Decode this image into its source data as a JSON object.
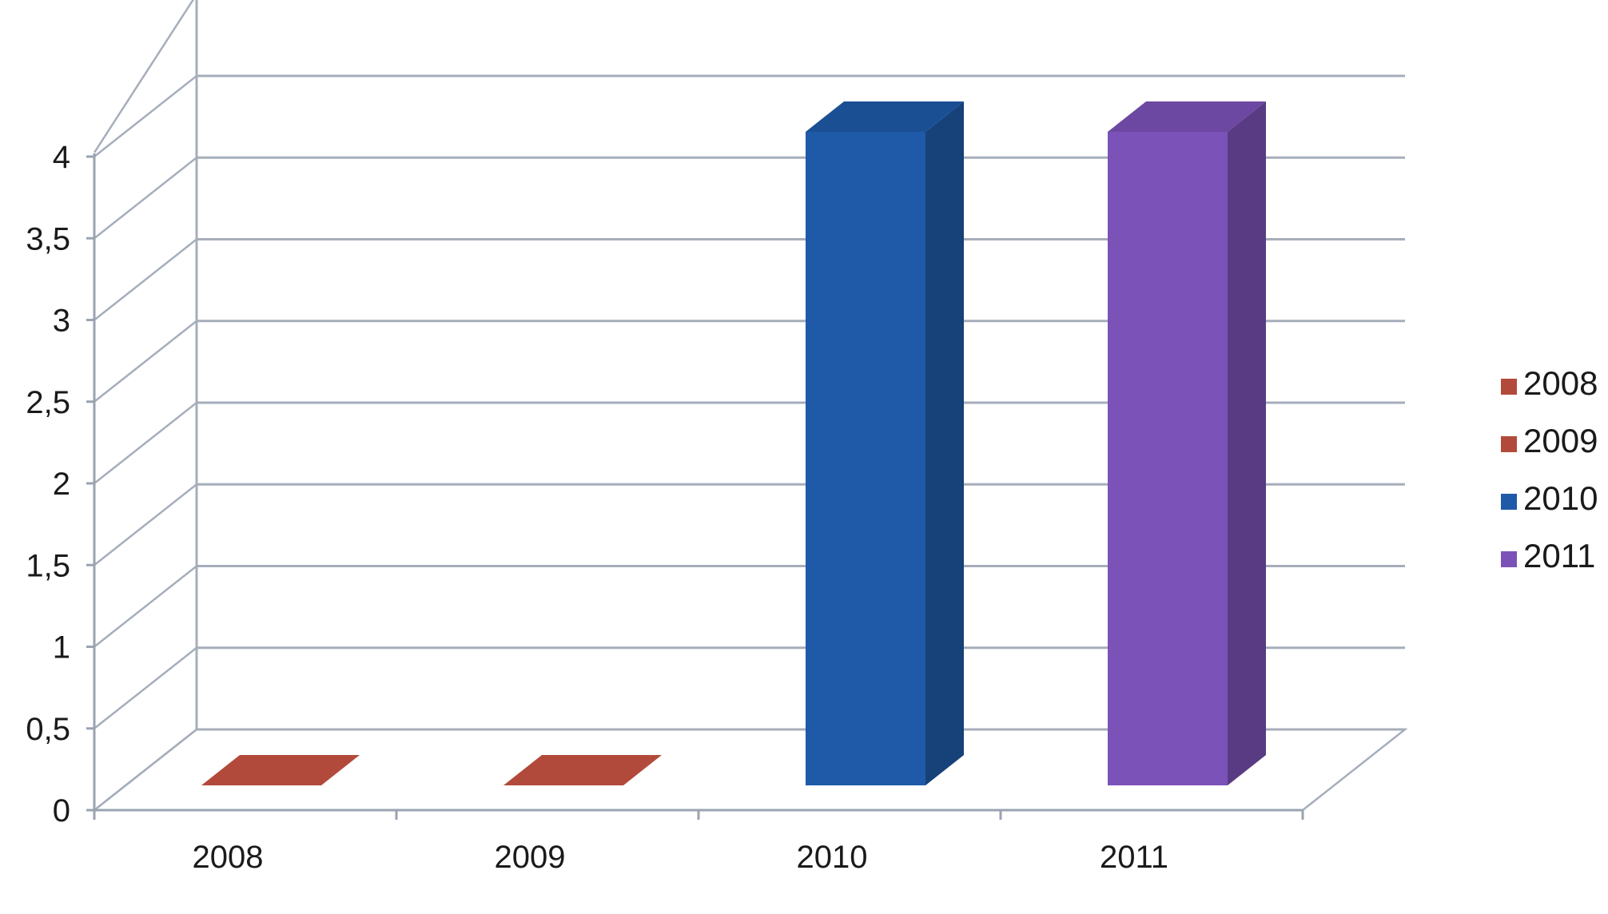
{
  "chart_data": {
    "type": "bar",
    "categories": [
      "2008",
      "2009",
      "2010",
      "2011"
    ],
    "values": [
      0,
      0,
      4,
      4
    ],
    "bar_colors": [
      "#b24a3b",
      "#b24a3b",
      "#1e5aa8",
      "#7b52b8"
    ],
    "ylim": [
      0,
      4
    ],
    "yticks": [
      "0",
      "0,5",
      "1",
      "1,5",
      "2",
      "2,5",
      "3",
      "3,5",
      "4"
    ],
    "grid": true,
    "legend": {
      "position": "right",
      "entries": [
        {
          "label": "2008",
          "color": "#b24a3b"
        },
        {
          "label": "2009",
          "color": "#b24a3b"
        },
        {
          "label": "2010",
          "color": "#1e5aa8"
        },
        {
          "label": "2011",
          "color": "#7b52b8"
        }
      ]
    }
  }
}
